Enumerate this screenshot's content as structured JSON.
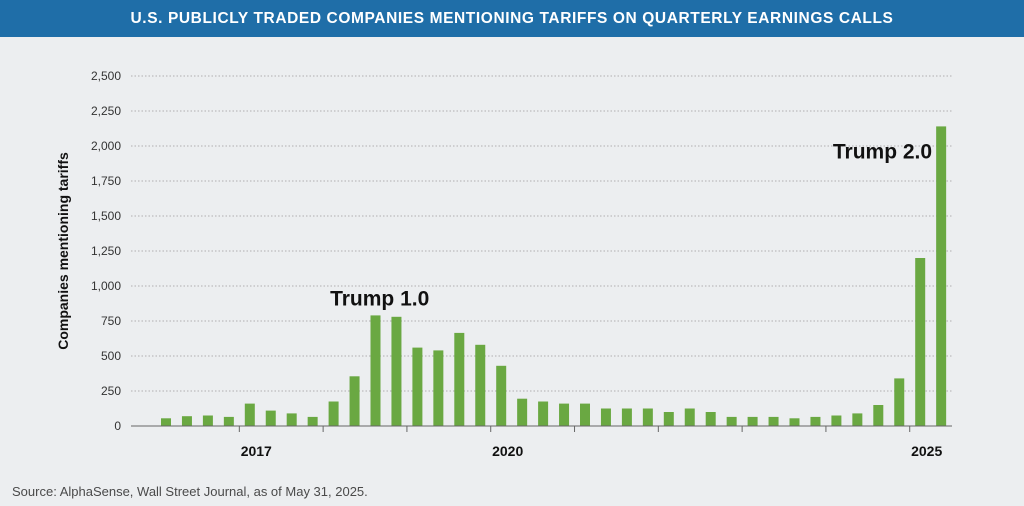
{
  "title": "U.S. PUBLICLY TRADED COMPANIES MENTIONING TARIFFS ON QUARTERLY EARNINGS CALLS",
  "source": "Source: AlphaSense, Wall Street Journal, as of May 31, 2025.",
  "colors": {
    "banner": "#1f6ea8",
    "bar": "#6aa842",
    "background": "#eceef0",
    "grid": "#9a9a9a"
  },
  "chart_data": {
    "type": "bar",
    "ylabel": "Companies mentioning tariffs",
    "ylim": [
      0,
      2500
    ],
    "yticks": [
      0,
      250,
      500,
      750,
      1000,
      1250,
      1500,
      1750,
      2000,
      2250,
      2500
    ],
    "ytick_labels": [
      "0",
      "250",
      "500",
      "750",
      "1,000",
      "1,250",
      "1,500",
      "1,750",
      "2,000",
      "2,250",
      "2,500"
    ],
    "grid": true,
    "x_labels": [
      {
        "label": "2017",
        "index": 4.5
      },
      {
        "label": "2020",
        "index": 16.5
      },
      {
        "label": "2025",
        "index": 36.5
      }
    ],
    "values": [
      55,
      70,
      75,
      65,
      160,
      110,
      90,
      65,
      175,
      355,
      790,
      780,
      560,
      540,
      665,
      580,
      430,
      195,
      175,
      160,
      160,
      125,
      125,
      125,
      100,
      125,
      100,
      65,
      65,
      65,
      55,
      65,
      75,
      90,
      150,
      340,
      1200,
      2140
    ],
    "annotations": [
      {
        "text": "Trump 1.0",
        "index": 10.2,
        "value": 860
      },
      {
        "text": "Trump 2.0",
        "index": 34.2,
        "value": 1910
      }
    ]
  }
}
